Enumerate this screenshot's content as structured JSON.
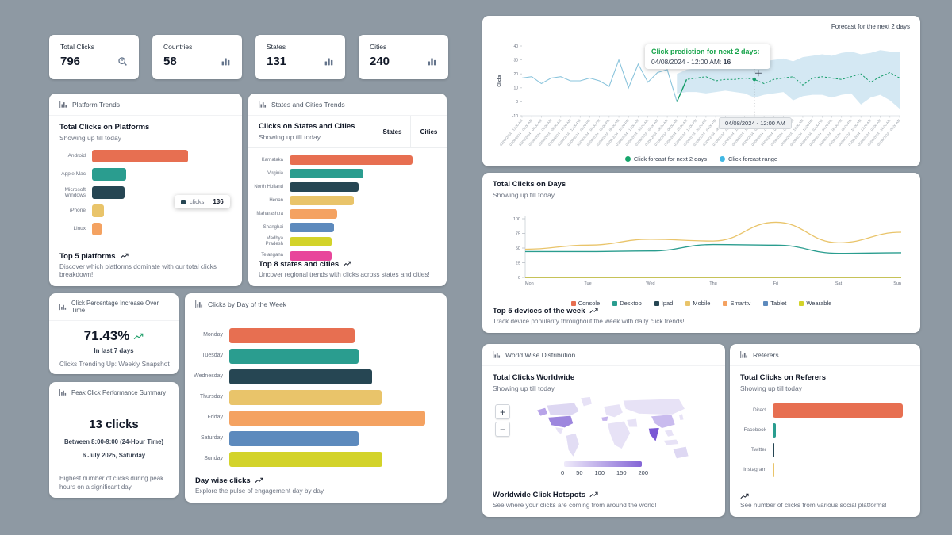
{
  "palette": {
    "orange": "#e76f51",
    "teal": "#2a9d8f",
    "navy": "#264653",
    "saffron": "#e9c46a",
    "sandy": "#f4a261",
    "blue": "#5d8abd",
    "lime": "#d3d32a",
    "pink": "#e8469b"
  },
  "stats": [
    {
      "label": "Total Clicks",
      "value": "796",
      "icon": "magnifier-icon"
    },
    {
      "label": "Countries",
      "value": "58",
      "icon": "bar-chart-icon"
    },
    {
      "label": "States",
      "value": "131",
      "icon": "bar-chart-icon"
    },
    {
      "label": "Cities",
      "value": "240",
      "icon": "bar-chart-icon"
    }
  ],
  "platform": {
    "header": "Platform Trends",
    "title": "Total Clicks on Platforms",
    "subtitle": "Showing up till today",
    "footer_title": "Top 5 platforms",
    "footer_desc": "Discover which platforms dominate with our total clicks breakdown!",
    "tooltip": {
      "series": "clicks",
      "value": "136"
    },
    "chart_data": {
      "type": "bar",
      "orientation": "horizontal",
      "categories": [
        "Android",
        "Apple Mac",
        "Microsoft Windows",
        "iPhone",
        "Linux"
      ],
      "values": [
        405,
        143,
        136,
        51,
        41
      ],
      "colors": [
        "orange",
        "teal",
        "navy",
        "saffron",
        "sandy"
      ],
      "xmax": 600
    }
  },
  "states": {
    "header": "States and Cities Trends",
    "title": "Clicks on States and Cities",
    "subtitle": "Showing up till today",
    "tabs": [
      "States",
      "Cities"
    ],
    "footer_title": "Top 8 states and cities",
    "footer_desc": "Uncover regional trends with clicks across states and cities!",
    "chart_data": {
      "type": "bar",
      "orientation": "horizontal",
      "categories": [
        "Karnataka",
        "Virginia",
        "North Holland",
        "Henan",
        "Maharashtra",
        "Shanghai",
        "Madhya Pradesh",
        "Telangana"
      ],
      "values": [
        250,
        150,
        140,
        130,
        96,
        90,
        85,
        85
      ],
      "colors": [
        "orange",
        "teal",
        "navy",
        "saffron",
        "sandy",
        "blue",
        "lime",
        "pink"
      ],
      "xmax": 300
    }
  },
  "percentage": {
    "header": "Click Percentage Increase Over Time",
    "value": "71.43%",
    "period": "In last 7 days",
    "footer": "Clicks Trending Up: Weekly Snapshot"
  },
  "peak": {
    "header": "Peak Click Performance Summary",
    "value": "13 clicks",
    "line1": "Between 8:00-9:00 (24-Hour Time)",
    "line2": "6 July 2025, Saturday",
    "footer": "Highest number of clicks during peak hours on a significant day"
  },
  "dayweek": {
    "header": "Clicks by Day of the Week",
    "footer_title": "Day wise clicks",
    "footer_desc": "Explore the pulse of engagement day by day",
    "chart_data": {
      "type": "bar",
      "orientation": "horizontal",
      "categories": [
        "Monday",
        "Tuesday",
        "Wednesday",
        "Thursday",
        "Friday",
        "Saturday",
        "Sunday"
      ],
      "values": [
        97,
        100,
        111,
        118,
        152,
        100,
        119
      ],
      "colors": [
        "orange",
        "teal",
        "navy",
        "saffron",
        "sandy",
        "blue",
        "lime"
      ],
      "xmax": 160
    }
  },
  "forecast": {
    "top_label": "Forecast for the next 2 days",
    "ylabel": "Clicks",
    "tooltip": {
      "title": "Click prediction for next 2 days:",
      "label": "04/08/2024 - 12:00 AM:",
      "value": "16"
    },
    "marker_label": "04/08/2024 - 12:00 AM",
    "legend": [
      {
        "label": "Click forcast for next 2 days",
        "color": "#16a56b"
      },
      {
        "label": "Click forcast range",
        "color": "#41b8e4"
      }
    ],
    "chart_data": {
      "type": "line",
      "ylim": [
        -10,
        40
      ],
      "yticks": [
        -10,
        0,
        10,
        20,
        30,
        40
      ],
      "x": [
        "02/08/2024 - 12:00 AM",
        "02/08/2024 - 02:00 AM",
        "02/08/2024 - 04:00 AM",
        "02/08/2024 - 06:00 AM",
        "02/08/2024 - 08:00 AM",
        "02/08/2024 - 10:00 AM",
        "02/08/2024 - 12:00 PM",
        "02/08/2024 - 02:00 PM",
        "02/08/2024 - 04:00 PM",
        "02/08/2024 - 06:00 PM",
        "02/08/2024 - 08:00 PM",
        "02/08/2024 - 10:00 PM",
        "03/08/2024 - 12:00 AM",
        "03/08/2024 - 02:00 AM",
        "03/08/2024 - 04:00 AM",
        "03/08/2024 - 06:00 AM",
        "03/08/2024 - 08:00 AM",
        "03/08/2024 - 10:00 AM",
        "03/08/2024 - 12:00 PM",
        "03/08/2024 - 02:00 PM",
        "03/08/2024 - 04:00 PM",
        "03/08/2024 - 06:00 PM",
        "03/08/2024 - 08:00 PM",
        "03/08/2024 - 10:00 PM",
        "04/08/2024 - 12:00 AM",
        "04/08/2024 - 02:00 AM",
        "04/08/2024 - 04:00 AM",
        "04/08/2024 - 06:00 AM",
        "04/08/2024 - 08:00 AM",
        "04/08/2024 - 10:00 AM",
        "04/08/2024 - 12:00 PM",
        "04/08/2024 - 02:00 PM",
        "04/08/2024 - 04:00 PM",
        "04/08/2024 - 06:00 PM",
        "04/08/2024 - 08:00 PM",
        "04/08/2024 - 10:00 PM",
        "05/08/2024 - 12:00 AM",
        "05/08/2024 - 02:00 AM",
        "05/08/2024 - 04:00 AM",
        "05/08/2024 - 06:00 AM"
      ],
      "history": [
        17,
        18,
        13,
        17,
        18,
        15,
        15,
        17,
        15,
        11,
        30,
        10,
        27,
        14,
        21,
        23,
        0
      ],
      "forecast_start_index": 16,
      "forecast": [
        0,
        16,
        17,
        18,
        15,
        16,
        16,
        17,
        16,
        13,
        16,
        17,
        18,
        12,
        17,
        18,
        17,
        16,
        18,
        20,
        14,
        18,
        21,
        17
      ],
      "band_upper": [
        20,
        23,
        24,
        25,
        26,
        27,
        26,
        27,
        28,
        29,
        30,
        31,
        29,
        32,
        33,
        34,
        33,
        35,
        36,
        34,
        35,
        37,
        36,
        36
      ],
      "band_lower": [
        6,
        7,
        7,
        6,
        7,
        8,
        7,
        6,
        3,
        5,
        6,
        7,
        1,
        4,
        5,
        5,
        3,
        5,
        6,
        -2,
        3,
        5,
        1,
        -5
      ],
      "marker_index": 24,
      "marker_value": 16,
      "history_color": "#8ac4dc",
      "forecast_color": "#169d6a",
      "band_color": "#cfe6f2"
    }
  },
  "days": {
    "title": "Total Clicks on Days",
    "subtitle": "Showing up till today",
    "footer_title": "Top 5 devices of the week",
    "footer_desc": "Track device popularity throughout the week with daily click trends!",
    "chart_data": {
      "type": "line",
      "categories": [
        "Mon",
        "Tue",
        "Wed",
        "Thu",
        "Fri",
        "Sat",
        "Sun"
      ],
      "ylim": [
        0,
        100
      ],
      "yticks": [
        0,
        25,
        50,
        75,
        100
      ],
      "series": [
        {
          "name": "Console",
          "color": "#e76f51",
          "values": [
            0,
            0,
            0,
            0,
            0,
            0,
            0
          ]
        },
        {
          "name": "Desktop",
          "color": "#2a9d8f",
          "values": [
            44,
            44,
            45,
            56,
            55,
            41,
            42
          ]
        },
        {
          "name": "Ipad",
          "color": "#264653",
          "values": [
            0,
            0,
            0,
            0,
            0,
            0,
            0
          ]
        },
        {
          "name": "Mobile",
          "color": "#e9c46a",
          "values": [
            48,
            55,
            65,
            62,
            94,
            59,
            77
          ]
        },
        {
          "name": "Smarttv",
          "color": "#f4a261",
          "values": [
            0,
            0,
            0,
            0,
            0,
            0,
            0
          ]
        },
        {
          "name": "Tablet",
          "color": "#5d8abd",
          "values": [
            0,
            0,
            0,
            0,
            0,
            0,
            0
          ]
        },
        {
          "name": "Wearable",
          "color": "#d3d32a",
          "values": [
            0,
            0,
            0,
            0,
            0,
            0,
            0
          ]
        }
      ]
    }
  },
  "world": {
    "header": "World Wise Distribution",
    "title": "Total Clicks Worldwide",
    "subtitle": "Showing up till today",
    "zoom_in": "+",
    "zoom_out": "−",
    "scale": {
      "ticks": [
        "0",
        "50",
        "100",
        "150",
        "200"
      ],
      "color_start": "#efebfa",
      "color_end": "#8465d6"
    },
    "map_colors": {
      "base": "#e7e2f6",
      "canada": "#ddd7f2",
      "us": "#9d86de",
      "alaska": "#b7a3e8",
      "spain": "#c4b3ec",
      "china": "#c9bbee",
      "india": "#7a58d4",
      "australia": "#ded8f3",
      "samerica": "#e2ddf4"
    },
    "footer_title": "Worldwide Click Hotspots",
    "footer_desc": "See where your clicks are coming from around the world!"
  },
  "referers": {
    "header": "Referers",
    "title": "Total Clicks on Referers",
    "subtitle": "Showing up till today",
    "footer_desc": "See number of clicks from various social platforms!",
    "chart_data": {
      "type": "bar",
      "orientation": "horizontal",
      "categories": [
        "Direct",
        "Facebook",
        "Twitter",
        "Instagram"
      ],
      "values": [
        765,
        18,
        8,
        5
      ],
      "colors": [
        "orange",
        "teal",
        "navy",
        "saffron"
      ],
      "xmax": 800
    }
  }
}
